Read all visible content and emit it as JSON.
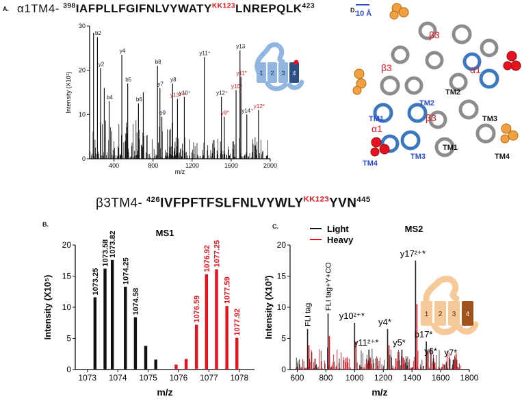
{
  "panels": {
    "A": "A.",
    "B": "B.",
    "C": "C.",
    "D": "D."
  },
  "sequence_a": {
    "prefix": "α1TM4-",
    "start": "398",
    "body": "IAFPLLFGIFNLVYWATY",
    "label": "KK123",
    "tail": "LNREPQLK",
    "end": "423"
  },
  "sequence_b": {
    "prefix": "β3TM4-",
    "start": "426",
    "body": "IVFPFTFSLFNLVYWLY",
    "label": "KK123",
    "tail": "YVN",
    "end": "445"
  },
  "structure": {
    "scale_label": "10 Å",
    "labels": [
      "β3",
      "β3",
      "α1",
      "β3",
      "α1",
      "TM1",
      "TM2",
      "TM3",
      "TM4",
      "TM1",
      "TM2",
      "TM3",
      "TM4"
    ]
  },
  "inset_a_numbers": [
    "1",
    "2",
    "3",
    "4"
  ],
  "inset_c_numbers": [
    "1",
    "2",
    "3",
    "4"
  ],
  "colors": {
    "red": "#e8121e",
    "black": "#111111",
    "blue": "#3b78c0",
    "orange": "#f0a040"
  },
  "chart_data": [
    {
      "id": "A",
      "type": "bar",
      "title": "",
      "xlabel": "m/z",
      "ylabel": "Intensity (X10²)",
      "xlim": [
        150,
        2000
      ],
      "ylim": [
        0,
        30
      ],
      "xticks": [
        400,
        800,
        1200,
        1600,
        2000
      ],
      "yticks": [
        0,
        10,
        20,
        30
      ],
      "peaks": [
        {
          "x": 190,
          "y": 28.5,
          "label": "",
          "color": "black"
        },
        {
          "x": 230,
          "y": 27.5,
          "label": "b2",
          "color": "black"
        },
        {
          "x": 262,
          "y": 20.5,
          "label": "y2",
          "color": "black"
        },
        {
          "x": 300,
          "y": 16.0,
          "label": "",
          "color": "black"
        },
        {
          "x": 350,
          "y": 13.0,
          "label": "b4",
          "color": "black"
        },
        {
          "x": 480,
          "y": 23.5,
          "label": "y4",
          "color": "black"
        },
        {
          "x": 540,
          "y": 17.0,
          "label": "b5",
          "color": "black"
        },
        {
          "x": 650,
          "y": 12.5,
          "label": "b6",
          "color": "black"
        },
        {
          "x": 700,
          "y": 15.0,
          "label": "",
          "color": "black"
        },
        {
          "x": 845,
          "y": 21.0,
          "label": "b8",
          "color": "black"
        },
        {
          "x": 870,
          "y": 16.0,
          "label": "y7",
          "color": "black"
        },
        {
          "x": 890,
          "y": 9.5,
          "label": "b9",
          "color": "black"
        },
        {
          "x": 1000,
          "y": 17.0,
          "label": "y8",
          "color": "black"
        },
        {
          "x": 1120,
          "y": 14.0,
          "label": "y10⁺",
          "color": "black"
        },
        {
          "x": 1325,
          "y": 23.0,
          "label": "y11⁺",
          "color": "black"
        },
        {
          "x": 1500,
          "y": 14.0,
          "label": "y12⁺",
          "color": "black"
        },
        {
          "x": 1690,
          "y": 24.5,
          "label": "y13",
          "color": "black"
        },
        {
          "x": 1760,
          "y": 10.0,
          "label": "y14⁺",
          "color": "black"
        },
        {
          "x": 1050,
          "y": 13.5,
          "label": "y13²⁺*",
          "color": "red"
        },
        {
          "x": 1530,
          "y": 9.5,
          "label": "y9*",
          "color": "red"
        },
        {
          "x": 1650,
          "y": 15.5,
          "label": "y10*",
          "color": "red"
        },
        {
          "x": 1700,
          "y": 18.5,
          "label": "y11*",
          "color": "red"
        },
        {
          "x": 1880,
          "y": 11.0,
          "label": "y12*",
          "color": "red"
        }
      ]
    },
    {
      "id": "B",
      "type": "bar",
      "title": "MS1",
      "xlabel": "m/z",
      "ylabel": "Intensity (X10⁵)",
      "xlim": [
        1072.6,
        1078.5
      ],
      "ylim": [
        0,
        20
      ],
      "xticks": [
        1073,
        1074,
        1075,
        1076,
        1077,
        1078
      ],
      "yticks": [
        0,
        5,
        10,
        15,
        20
      ],
      "series": [
        {
          "name": "",
          "color": "black",
          "peaks": [
            {
              "x": 1073.25,
              "y": 11.6,
              "label": "1073.25"
            },
            {
              "x": 1073.58,
              "y": 16.2,
              "label": "1073.58"
            },
            {
              "x": 1073.82,
              "y": 17.6,
              "label": "1073.82"
            },
            {
              "x": 1074.25,
              "y": 13.3,
              "label": "1074.25"
            },
            {
              "x": 1074.58,
              "y": 8.4,
              "label": "1074.58"
            },
            {
              "x": 1074.92,
              "y": 3.8,
              "label": ""
            },
            {
              "x": 1075.25,
              "y": 1.6,
              "label": ""
            }
          ]
        },
        {
          "name": "",
          "color": "red",
          "peaks": [
            {
              "x": 1075.92,
              "y": 0.8,
              "label": ""
            },
            {
              "x": 1076.25,
              "y": 1.7,
              "label": ""
            },
            {
              "x": 1076.59,
              "y": 7.2,
              "label": "1076.59"
            },
            {
              "x": 1076.92,
              "y": 15.3,
              "label": "1076.92"
            },
            {
              "x": 1077.25,
              "y": 16.1,
              "label": "1077.25"
            },
            {
              "x": 1077.59,
              "y": 10.2,
              "label": "1077.59"
            },
            {
              "x": 1077.92,
              "y": 5.1,
              "label": "1077.92"
            }
          ]
        }
      ]
    },
    {
      "id": "C",
      "type": "bar",
      "title": "MS2",
      "xlabel": "m/z",
      "ylabel": "Intensity (X10³)",
      "xlim": [
        550,
        1800
      ],
      "ylim": [
        0,
        20
      ],
      "xticks": [
        600,
        800,
        1000,
        1200,
        1400,
        1600,
        1800
      ],
      "yticks": [
        0,
        5,
        10,
        15,
        20
      ],
      "legend": {
        "position": "top-left",
        "entries": [
          {
            "name": "Light",
            "color": "black"
          },
          {
            "name": "Heavy",
            "color": "red"
          }
        ]
      },
      "peaks": [
        {
          "x": 672,
          "y": 6.5,
          "label": "FLI tag",
          "color": "black"
        },
        {
          "x": 815,
          "y": 9.0,
          "label": "FLI tag+Y+CO",
          "color": "black"
        },
        {
          "x": 1000,
          "y": 7.5,
          "label": "y10²⁺*",
          "color": "black"
        },
        {
          "x": 1100,
          "y": 3.2,
          "label": "y11²⁺*",
          "color": "black"
        },
        {
          "x": 1230,
          "y": 6.5,
          "label": "y4*",
          "color": "black"
        },
        {
          "x": 1330,
          "y": 3.2,
          "label": "y5*",
          "color": "black"
        },
        {
          "x": 1425,
          "y": 17.5,
          "label": "y17²⁺*",
          "color": "black"
        },
        {
          "x": 1500,
          "y": 4.5,
          "label": "b17*",
          "color": "black"
        },
        {
          "x": 1550,
          "y": 1.8,
          "label": "y6*",
          "color": "black"
        },
        {
          "x": 1690,
          "y": 1.6,
          "label": "y7*",
          "color": "black"
        }
      ]
    }
  ]
}
